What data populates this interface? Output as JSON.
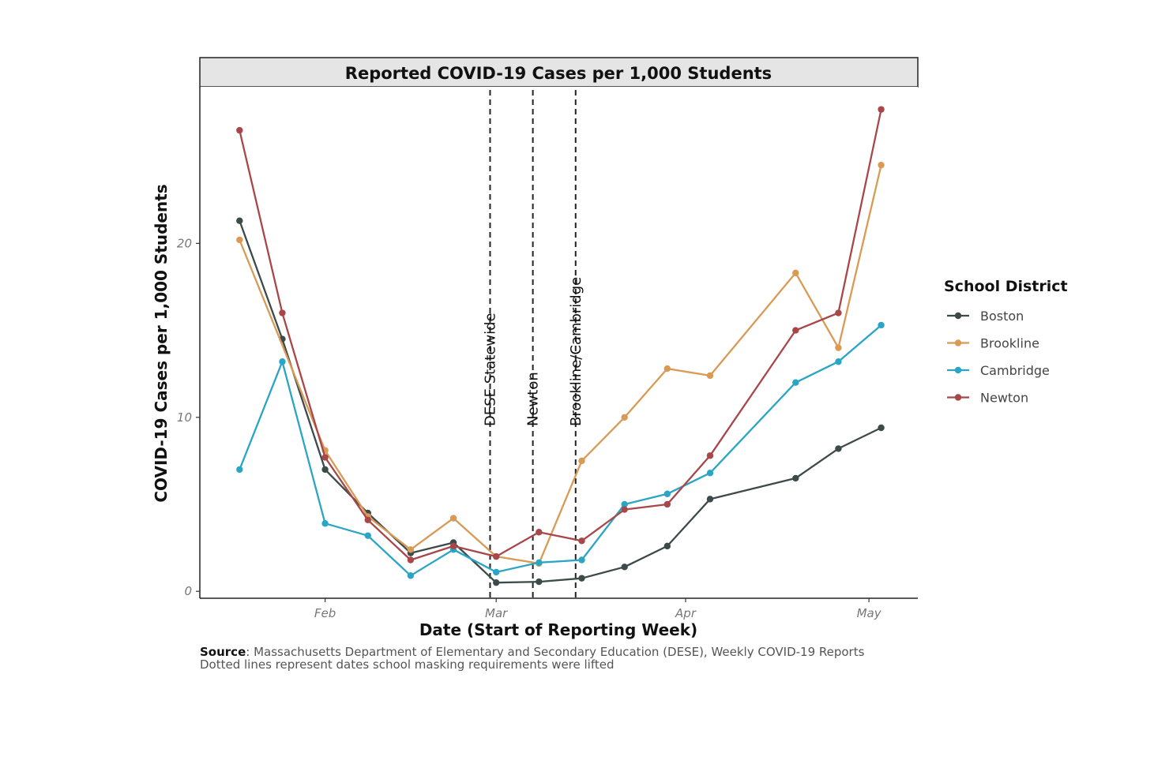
{
  "chart_data": {
    "type": "line",
    "title": "Reported COVID-19 Cases per 1,000 Students",
    "xlabel": "Date (Start of Reporting Week)",
    "ylabel": "COVID-19 Cases per 1,000 Students",
    "ylim": [
      -0.4,
      29
    ],
    "yticks": [
      0,
      10,
      20
    ],
    "xlim": [
      -3.5,
      114
    ],
    "xticks": [
      {
        "label": "Feb",
        "x": 17
      },
      {
        "label": "Mar",
        "x": 45
      },
      {
        "label": "Apr",
        "x": 76
      },
      {
        "label": "May",
        "x": 106
      }
    ],
    "legend": {
      "title": "School District",
      "position": "right"
    },
    "vlines": [
      {
        "x": 44,
        "label": "DESE Statewide"
      },
      {
        "x": 51,
        "label": "Newton"
      },
      {
        "x": 58,
        "label": "Brookline/Cambridge"
      }
    ],
    "series": [
      {
        "name": "Boston",
        "color": "#3d4a4a",
        "points": [
          [
            3,
            21.3
          ],
          [
            10,
            14.5
          ],
          [
            17,
            7
          ],
          [
            24,
            4.5
          ],
          [
            31,
            2.2
          ],
          [
            38,
            2.8
          ],
          [
            45,
            0.5
          ],
          [
            52,
            0.55
          ],
          [
            59,
            0.75
          ],
          [
            66,
            1.4
          ],
          [
            73,
            2.6
          ],
          [
            80,
            5.3
          ],
          [
            94,
            6.5
          ],
          [
            101,
            8.2
          ],
          [
            108,
            9.4
          ]
        ]
      },
      {
        "name": "Brookline",
        "color": "#d89a55",
        "points": [
          [
            3,
            20.2
          ],
          [
            17,
            8.1
          ],
          [
            24,
            4.3
          ],
          [
            31,
            2.4
          ],
          [
            38,
            4.2
          ],
          [
            45,
            2.0
          ],
          [
            52,
            1.6
          ],
          [
            59,
            7.5
          ],
          [
            66,
            10.0
          ],
          [
            73,
            12.8
          ],
          [
            80,
            12.4
          ],
          [
            94,
            18.3
          ],
          [
            101,
            14.0
          ],
          [
            108,
            24.5
          ]
        ]
      },
      {
        "name": "Cambridge",
        "color": "#2aa5c4",
        "points": [
          [
            3,
            7.0
          ],
          [
            10,
            13.2
          ],
          [
            17,
            3.9
          ],
          [
            24,
            3.2
          ],
          [
            31,
            0.9
          ],
          [
            38,
            2.4
          ],
          [
            45,
            1.1
          ],
          [
            52,
            1.65
          ],
          [
            59,
            1.8
          ],
          [
            66,
            5.0
          ],
          [
            73,
            5.6
          ],
          [
            80,
            6.8
          ],
          [
            94,
            12.0
          ],
          [
            101,
            13.2
          ],
          [
            108,
            15.3
          ]
        ]
      },
      {
        "name": "Newton",
        "color": "#a8474a",
        "points": [
          [
            3,
            26.5
          ],
          [
            10,
            16.0
          ],
          [
            17,
            7.7
          ],
          [
            24,
            4.1
          ],
          [
            31,
            1.8
          ],
          [
            38,
            2.6
          ],
          [
            45,
            2.0
          ],
          [
            52,
            3.4
          ],
          [
            59,
            2.9
          ],
          [
            66,
            4.7
          ],
          [
            73,
            5.0
          ],
          [
            80,
            7.8
          ],
          [
            94,
            15.0
          ],
          [
            101,
            16.0
          ],
          [
            108,
            27.7
          ]
        ]
      }
    ]
  },
  "caption": {
    "source_label": "Source",
    "source_text": ": Massachusetts Department of Elementary and Secondary Education (DESE), Weekly COVID-19 Reports",
    "note": "Dotted lines represent dates school masking requirements were lifted"
  }
}
